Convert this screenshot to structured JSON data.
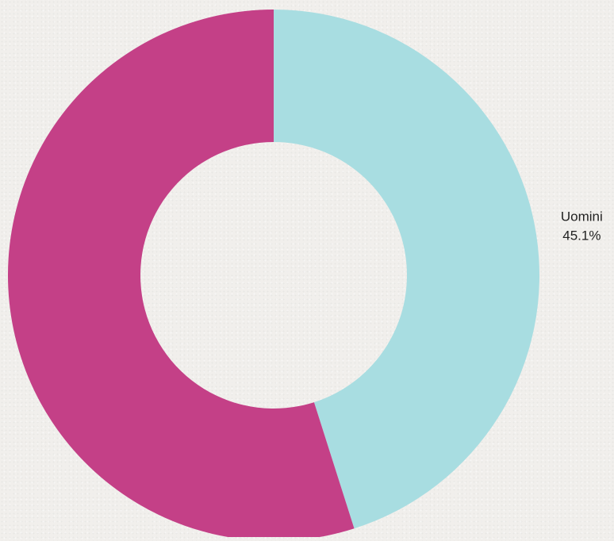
{
  "chart_data": {
    "type": "pie",
    "variant": "donut",
    "title": "",
    "slices": [
      {
        "label": "Uomini",
        "value": 45.1,
        "value_label": "45.1%",
        "color": "#a8dde1"
      },
      {
        "label": "",
        "value": 54.9,
        "value_label": "",
        "color": "#c44087"
      }
    ],
    "start": "top",
    "direction": "clockwise",
    "legend": "none"
  }
}
